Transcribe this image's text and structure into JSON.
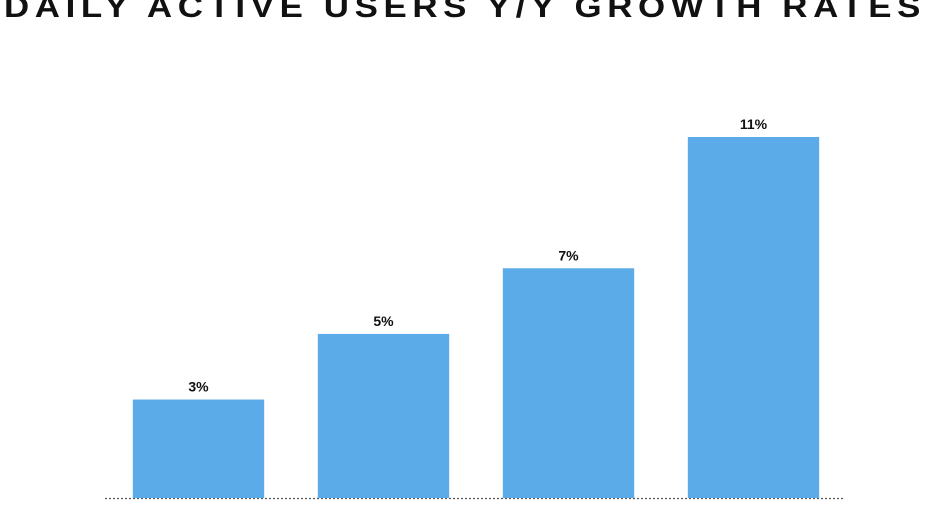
{
  "chart_data": {
    "type": "bar",
    "title": "DAILY ACTIVE USERS Y/Y GROWTH RATES",
    "categories": [
      null,
      null,
      null,
      null
    ],
    "values": [
      3,
      5,
      7,
      11
    ],
    "value_labels": [
      "3%",
      "5%",
      "7%",
      "11%"
    ],
    "color": "#5aabe8"
  }
}
